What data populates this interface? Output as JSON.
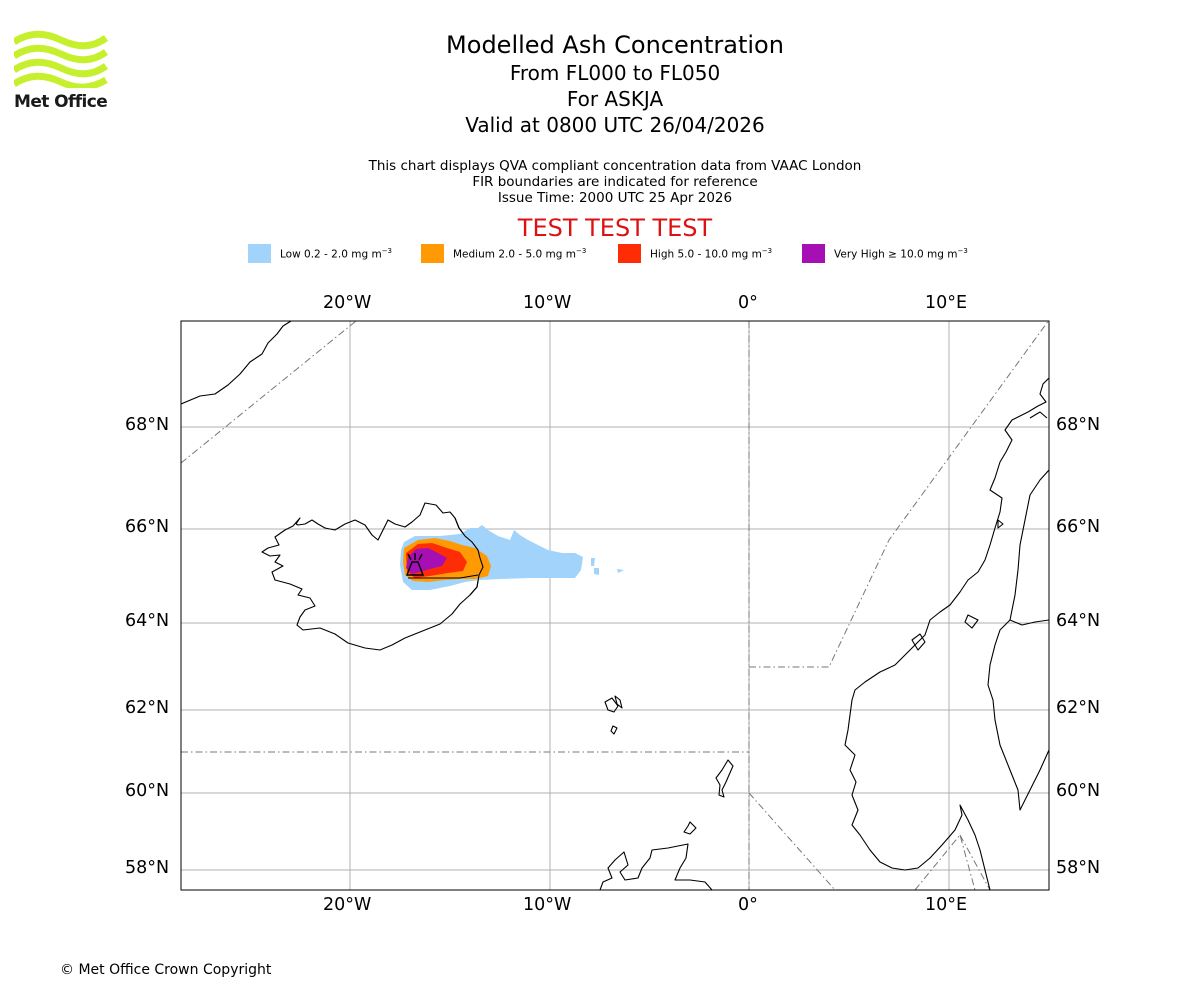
{
  "logo": {
    "text": "Met Office",
    "color": "#c6f02e"
  },
  "title": "Modelled Ash Concentration",
  "level_range": "From FL000 to FL050",
  "volcano": "For ASKJA",
  "valid_time": "Valid at 0800 UTC 26/04/2026",
  "subtitle_lines": [
    "This chart displays QVA compliant concentration data from VAAC London",
    "FIR boundaries are indicated for reference",
    "Issue Time: 2000 UTC 25 Apr 2026"
  ],
  "test_banner": "TEST TEST TEST",
  "test_color": "#dd1111",
  "legend": [
    {
      "label": "Low 0.2 - 2.0 mg m",
      "unit_exp": "−3",
      "color": "#a2d4fb"
    },
    {
      "label": "Medium 2.0 - 5.0 mg m",
      "unit_exp": "−3",
      "color": "#ff9a05"
    },
    {
      "label": "High 5.0 - 10.0 mg m",
      "unit_exp": "−3",
      "color": "#ff2d05"
    },
    {
      "label": "Very High  ≥  10.0 mg m",
      "unit_exp": "−3",
      "color": "#a60fb3"
    }
  ],
  "map": {
    "lon_ticks": [
      "20°W",
      "10°W",
      "0°",
      "10°E"
    ],
    "lat_ticks": [
      "68°N",
      "66°N",
      "64°N",
      "62°N",
      "60°N",
      "58°N"
    ],
    "volcano_icon": "volcano-icon"
  },
  "copyright": "© Met Office Crown Copyright"
}
